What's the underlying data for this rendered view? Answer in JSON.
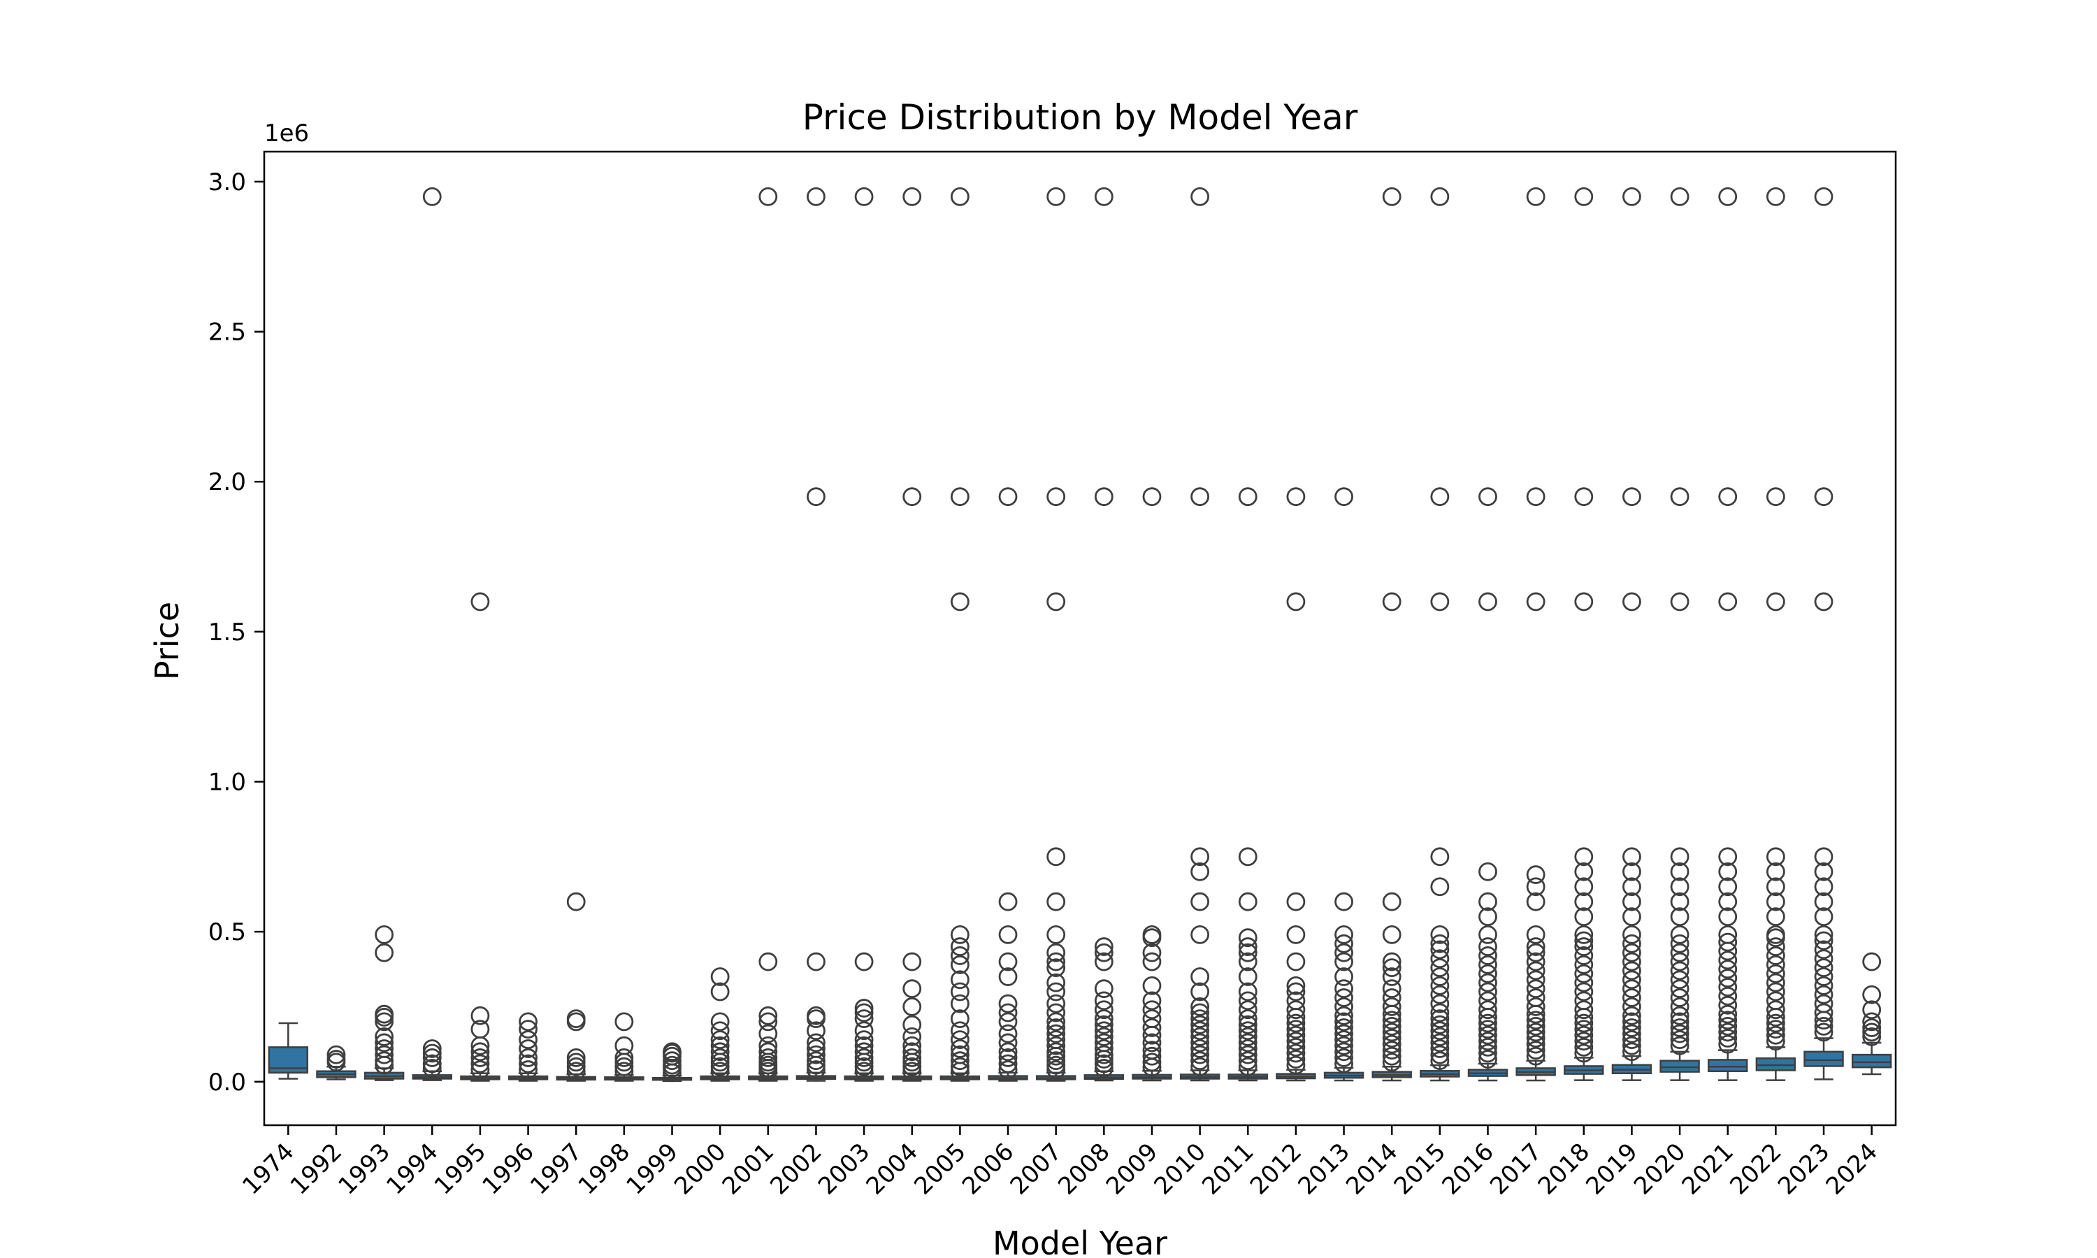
{
  "chart_data": {
    "type": "box",
    "title": "Price Distribution by Model Year",
    "xlabel": "Model Year",
    "ylabel": "Price",
    "y_offset_label": "1e6",
    "ylim": [
      -145000,
      3100000
    ],
    "y_ticks": [
      0,
      500000,
      1000000,
      1500000,
      2000000,
      2500000,
      3000000
    ],
    "y_tick_labels": [
      "0.0",
      "0.5",
      "1.0",
      "1.5",
      "2.0",
      "2.5",
      "3.0"
    ],
    "box_color": "#3274a1",
    "edge_color": "#3f3f3f",
    "categories": [
      "1974",
      "1992",
      "1993",
      "1994",
      "1995",
      "1996",
      "1997",
      "1998",
      "1999",
      "2000",
      "2001",
      "2002",
      "2003",
      "2004",
      "2005",
      "2006",
      "2007",
      "2008",
      "2009",
      "2010",
      "2011",
      "2012",
      "2013",
      "2014",
      "2015",
      "2016",
      "2017",
      "2018",
      "2019",
      "2020",
      "2021",
      "2022",
      "2023",
      "2024"
    ],
    "boxes": [
      {
        "min": 10000,
        "q1": 30000,
        "median": 45000,
        "q3": 115000,
        "max": 195000,
        "outliers": []
      },
      {
        "min": 8000,
        "q1": 15000,
        "median": 25000,
        "q3": 35000,
        "max": 50000,
        "outliers": [
          65000,
          75000,
          90000
        ]
      },
      {
        "min": 5000,
        "q1": 10000,
        "median": 18000,
        "q3": 30000,
        "max": 45000,
        "outliers": [
          55000,
          70000,
          90000,
          110000,
          130000,
          150000,
          200000,
          215000,
          225000,
          430000,
          490000
        ]
      },
      {
        "min": 5000,
        "q1": 10000,
        "median": 15000,
        "q3": 22000,
        "max": 35000,
        "outliers": [
          45000,
          60000,
          80000,
          95000,
          110000,
          2950000
        ]
      },
      {
        "min": 3000,
        "q1": 8000,
        "median": 12000,
        "q3": 18000,
        "max": 28000,
        "outliers": [
          40000,
          60000,
          80000,
          100000,
          120000,
          175000,
          220000,
          1600000
        ]
      },
      {
        "min": 3000,
        "q1": 8000,
        "median": 12000,
        "q3": 18000,
        "max": 28000,
        "outliers": [
          40000,
          60000,
          80000,
          110000,
          140000,
          175000,
          200000
        ]
      },
      {
        "min": 3000,
        "q1": 7000,
        "median": 11000,
        "q3": 16000,
        "max": 25000,
        "outliers": [
          35000,
          50000,
          65000,
          80000,
          200000,
          210000,
          600000
        ]
      },
      {
        "min": 3000,
        "q1": 7000,
        "median": 10000,
        "q3": 15000,
        "max": 22000,
        "outliers": [
          35000,
          50000,
          65000,
          80000,
          120000,
          200000
        ]
      },
      {
        "min": 2000,
        "q1": 6000,
        "median": 9000,
        "q3": 13000,
        "max": 20000,
        "outliers": [
          30000,
          45000,
          55000,
          70000,
          85000,
          95000,
          100000
        ]
      },
      {
        "min": 3000,
        "q1": 8000,
        "median": 12000,
        "q3": 18000,
        "max": 28000,
        "outliers": [
          35000,
          50000,
          65000,
          80000,
          100000,
          120000,
          140000,
          170000,
          200000,
          300000,
          350000
        ]
      },
      {
        "min": 3000,
        "q1": 8000,
        "median": 12000,
        "q3": 18000,
        "max": 28000,
        "outliers": [
          35000,
          45000,
          55000,
          65000,
          80000,
          100000,
          120000,
          160000,
          200000,
          220000,
          400000,
          2950000
        ]
      },
      {
        "min": 3000,
        "q1": 9000,
        "median": 13000,
        "q3": 19000,
        "max": 30000,
        "outliers": [
          40000,
          55000,
          70000,
          90000,
          110000,
          130000,
          170000,
          210000,
          220000,
          400000,
          1950000,
          2950000
        ]
      },
      {
        "min": 3000,
        "q1": 8000,
        "median": 12000,
        "q3": 18000,
        "max": 28000,
        "outliers": [
          35000,
          50000,
          65000,
          80000,
          100000,
          120000,
          140000,
          170000,
          210000,
          230000,
          245000,
          400000,
          2950000
        ]
      },
      {
        "min": 3000,
        "q1": 8000,
        "median": 12000,
        "q3": 18000,
        "max": 28000,
        "outliers": [
          35000,
          50000,
          65000,
          80000,
          100000,
          120000,
          150000,
          190000,
          250000,
          310000,
          400000,
          1950000,
          2950000
        ]
      },
      {
        "min": 3000,
        "q1": 8000,
        "median": 12000,
        "q3": 18000,
        "max": 28000,
        "outliers": [
          35000,
          50000,
          70000,
          90000,
          110000,
          140000,
          170000,
          210000,
          260000,
          300000,
          340000,
          390000,
          420000,
          450000,
          490000,
          1600000,
          1950000,
          2950000
        ]
      },
      {
        "min": 3000,
        "q1": 8000,
        "median": 12000,
        "q3": 19000,
        "max": 30000,
        "outliers": [
          40000,
          60000,
          80000,
          100000,
          130000,
          160000,
          200000,
          230000,
          260000,
          350000,
          400000,
          490000,
          600000,
          1950000
        ]
      },
      {
        "min": 3000,
        "q1": 8000,
        "median": 12000,
        "q3": 19000,
        "max": 30000,
        "outliers": [
          40000,
          55000,
          70000,
          85000,
          100000,
          120000,
          140000,
          160000,
          180000,
          200000,
          230000,
          260000,
          300000,
          330000,
          380000,
          400000,
          430000,
          490000,
          600000,
          750000,
          1600000,
          1950000,
          2950000
        ]
      },
      {
        "min": 4000,
        "q1": 9000,
        "median": 14000,
        "q3": 22000,
        "max": 35000,
        "outliers": [
          45000,
          60000,
          75000,
          90000,
          110000,
          130000,
          150000,
          170000,
          190000,
          210000,
          240000,
          270000,
          310000,
          400000,
          430000,
          450000,
          1950000,
          2950000
        ]
      },
      {
        "min": 4000,
        "q1": 10000,
        "median": 15000,
        "q3": 23000,
        "max": 36000,
        "outliers": [
          48000,
          65000,
          85000,
          105000,
          130000,
          155000,
          180000,
          210000,
          240000,
          270000,
          320000,
          400000,
          430000,
          480000,
          490000,
          1950000
        ]
      },
      {
        "min": 4000,
        "q1": 10000,
        "median": 16000,
        "q3": 24000,
        "max": 38000,
        "outliers": [
          50000,
          70000,
          90000,
          110000,
          130000,
          150000,
          170000,
          190000,
          210000,
          230000,
          250000,
          300000,
          350000,
          490000,
          600000,
          700000,
          750000,
          1950000,
          2950000
        ]
      },
      {
        "min": 4000,
        "q1": 10000,
        "median": 16000,
        "q3": 24000,
        "max": 38000,
        "outliers": [
          50000,
          70000,
          90000,
          110000,
          130000,
          150000,
          170000,
          190000,
          210000,
          240000,
          270000,
          300000,
          350000,
          400000,
          430000,
          450000,
          480000,
          600000,
          750000,
          1950000
        ]
      },
      {
        "min": 4000,
        "q1": 11000,
        "median": 17000,
        "q3": 26000,
        "max": 40000,
        "outliers": [
          55000,
          75000,
          95000,
          115000,
          135000,
          155000,
          175000,
          195000,
          215000,
          240000,
          270000,
          300000,
          320000,
          400000,
          490000,
          600000,
          1600000,
          1950000
        ]
      },
      {
        "min": 4000,
        "q1": 13000,
        "median": 20000,
        "q3": 30000,
        "max": 46000,
        "outliers": [
          60000,
          80000,
          100000,
          120000,
          140000,
          160000,
          180000,
          200000,
          220000,
          250000,
          280000,
          310000,
          350000,
          400000,
          430000,
          460000,
          490000,
          600000,
          1950000
        ]
      },
      {
        "min": 4000,
        "q1": 15000,
        "median": 22000,
        "q3": 33000,
        "max": 50000,
        "outliers": [
          65000,
          85000,
          105000,
          125000,
          145000,
          165000,
          185000,
          205000,
          225000,
          250000,
          280000,
          310000,
          350000,
          380000,
          400000,
          490000,
          600000,
          1600000,
          2950000
        ]
      },
      {
        "min": 4000,
        "q1": 17000,
        "median": 25000,
        "q3": 36000,
        "max": 55000,
        "outliers": [
          70000,
          90000,
          110000,
          130000,
          150000,
          170000,
          190000,
          210000,
          230000,
          260000,
          290000,
          320000,
          350000,
          380000,
          410000,
          440000,
          460000,
          490000,
          650000,
          750000,
          1600000,
          1950000,
          2950000
        ]
      },
      {
        "min": 4000,
        "q1": 19000,
        "median": 28000,
        "q3": 40000,
        "max": 60000,
        "outliers": [
          75000,
          95000,
          115000,
          135000,
          155000,
          175000,
          195000,
          215000,
          240000,
          270000,
          300000,
          330000,
          360000,
          390000,
          420000,
          450000,
          490000,
          550000,
          600000,
          700000,
          1600000,
          1950000
        ]
      },
      {
        "min": 4000,
        "q1": 22000,
        "median": 32000,
        "q3": 45000,
        "max": 70000,
        "outliers": [
          85000,
          105000,
          125000,
          145000,
          165000,
          185000,
          205000,
          225000,
          250000,
          280000,
          310000,
          340000,
          370000,
          400000,
          430000,
          450000,
          490000,
          600000,
          650000,
          690000,
          1600000,
          1950000,
          2950000
        ]
      },
      {
        "min": 5000,
        "q1": 26000,
        "median": 38000,
        "q3": 52000,
        "max": 80000,
        "outliers": [
          95000,
          115000,
          135000,
          155000,
          175000,
          195000,
          215000,
          240000,
          270000,
          300000,
          330000,
          360000,
          390000,
          420000,
          450000,
          470000,
          490000,
          550000,
          600000,
          650000,
          700000,
          750000,
          1600000,
          1950000,
          2950000
        ]
      },
      {
        "min": 5000,
        "q1": 28000,
        "median": 40000,
        "q3": 56000,
        "max": 85000,
        "outliers": [
          100000,
          120000,
          140000,
          160000,
          180000,
          200000,
          220000,
          250000,
          280000,
          310000,
          340000,
          370000,
          400000,
          430000,
          460000,
          490000,
          550000,
          600000,
          650000,
          700000,
          750000,
          1600000,
          1950000,
          2950000
        ]
      },
      {
        "min": 5000,
        "q1": 33000,
        "median": 48000,
        "q3": 70000,
        "max": 100000,
        "outliers": [
          120000,
          140000,
          160000,
          180000,
          200000,
          220000,
          250000,
          280000,
          310000,
          340000,
          370000,
          400000,
          430000,
          460000,
          490000,
          550000,
          600000,
          650000,
          700000,
          750000,
          1600000,
          1950000,
          2950000
        ]
      },
      {
        "min": 5000,
        "q1": 35000,
        "median": 50000,
        "q3": 73000,
        "max": 105000,
        "outliers": [
          125000,
          145000,
          165000,
          185000,
          205000,
          225000,
          255000,
          285000,
          315000,
          345000,
          375000,
          405000,
          435000,
          465000,
          490000,
          550000,
          600000,
          650000,
          700000,
          750000,
          1600000,
          1950000,
          2950000
        ]
      },
      {
        "min": 5000,
        "q1": 38000,
        "median": 55000,
        "q3": 78000,
        "max": 115000,
        "outliers": [
          135000,
          155000,
          175000,
          195000,
          215000,
          240000,
          270000,
          300000,
          330000,
          360000,
          390000,
          420000,
          450000,
          480000,
          490000,
          550000,
          600000,
          650000,
          700000,
          750000,
          1600000,
          1950000,
          2950000
        ]
      },
      {
        "min": 8000,
        "q1": 52000,
        "median": 72000,
        "q3": 100000,
        "max": 145000,
        "outliers": [
          165000,
          185000,
          205000,
          230000,
          260000,
          290000,
          320000,
          350000,
          380000,
          410000,
          440000,
          470000,
          490000,
          550000,
          600000,
          650000,
          700000,
          750000,
          1600000,
          1950000,
          2950000
        ]
      },
      {
        "min": 25000,
        "q1": 48000,
        "median": 65000,
        "q3": 90000,
        "max": 130000,
        "outliers": [
          150000,
          165000,
          180000,
          200000,
          240000,
          290000,
          400000
        ]
      }
    ]
  }
}
